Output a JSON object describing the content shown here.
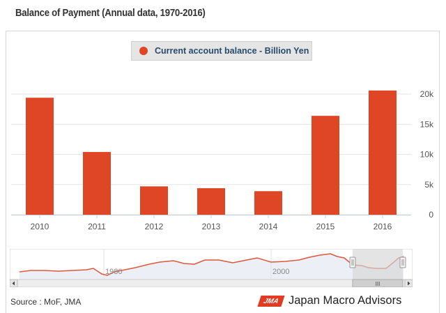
{
  "page": {
    "title": "Balance of Payment (Annual data, 1970-2016)",
    "source": "Source : MoF, JMA",
    "brand_logo": "JMA",
    "brand_name": "Japan Macro Advisors"
  },
  "colors": {
    "bar": "#de4626",
    "navigator_line": "#e0563a",
    "navigator_window": "#d5d5d5",
    "grid": "#e6e6e6"
  },
  "chart_data": {
    "type": "bar",
    "title": "",
    "xlabel": "",
    "ylabel": "",
    "categories": [
      "2010",
      "2011",
      "2012",
      "2013",
      "2014",
      "2015",
      "2016"
    ],
    "series": [
      {
        "name": "Current account balance - Billion Yen",
        "values": [
          19400,
          10400,
          4700,
          4400,
          3900,
          16400,
          20600
        ]
      }
    ],
    "ylim": [
      0,
      20000
    ],
    "yticks": [
      0,
      5000,
      10000,
      15000,
      20000
    ],
    "ytick_labels": [
      "0",
      "5k",
      "10k",
      "15k",
      "20k"
    ],
    "y_axis_side": "right",
    "grid": true,
    "legend": "top-center"
  },
  "navigator": {
    "tick_labels": [
      "1980",
      "2000"
    ],
    "scroll_grip": "III"
  }
}
